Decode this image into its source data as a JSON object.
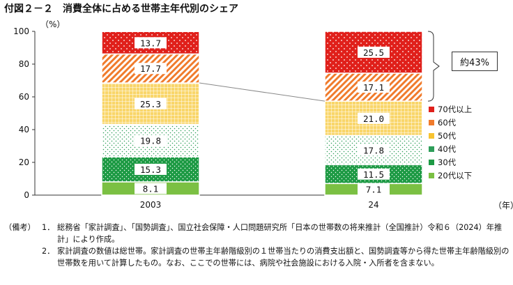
{
  "title": "付図２－２　消費全体に占める世帯主年代別のシェア",
  "y_unit": "（%）",
  "x_unit": "（年）",
  "callout": "約43%",
  "colors": {
    "70s": "#e0201b",
    "60s": "#f07b2c",
    "50s": "#f7c331",
    "40s": "#2e9e5a",
    "30s": "#1d9a44",
    "20s": "#7bc043"
  },
  "chart_data": {
    "type": "bar",
    "stacked": true,
    "categories": [
      "2003",
      "24"
    ],
    "ylim": [
      0,
      100
    ],
    "yticks": [
      0,
      20,
      40,
      60,
      80,
      100
    ],
    "series": [
      {
        "name": "20代以下",
        "key": "20s",
        "values": [
          8.1,
          7.1
        ],
        "labels": [
          "8.1",
          "7.1"
        ]
      },
      {
        "name": "30代",
        "key": "30s",
        "values": [
          15.3,
          11.5
        ],
        "labels": [
          "15.3",
          "11.5"
        ]
      },
      {
        "name": "40代",
        "key": "40s",
        "values": [
          19.8,
          17.8
        ],
        "labels": [
          "19.8",
          "17.8"
        ]
      },
      {
        "name": "50代",
        "key": "50s",
        "values": [
          25.3,
          21.0
        ],
        "labels": [
          "25.3",
          "21.0"
        ]
      },
      {
        "name": "60代",
        "key": "60s",
        "values": [
          17.7,
          17.1
        ],
        "labels": [
          "17.7",
          "17.1"
        ]
      },
      {
        "name": "70代以上",
        "key": "70s",
        "values": [
          13.7,
          25.5
        ],
        "labels": [
          "13.7",
          "25.5"
        ]
      }
    ],
    "legend_placement": "right"
  },
  "notes": {
    "head": "（備考）",
    "items": [
      {
        "num": "1．",
        "text": "総務省「家計調査」、「国勢調査」、国立社会保障・人口問題研究所「日本の世帯数の将来推計（全国推計）令和６（2024）年推計」により作成。"
      },
      {
        "num": "2．",
        "text": "家計調査の数値は総世帯。家計調査の世帯主年齢階級別の１世帯当たりの消費支出額と、国勢調査等から得た世帯主年齢階級別の世帯数を用いて計算したもの。なお、ここでの世帯には、病院や社会施設における入院・入所者を含まない。"
      }
    ]
  }
}
